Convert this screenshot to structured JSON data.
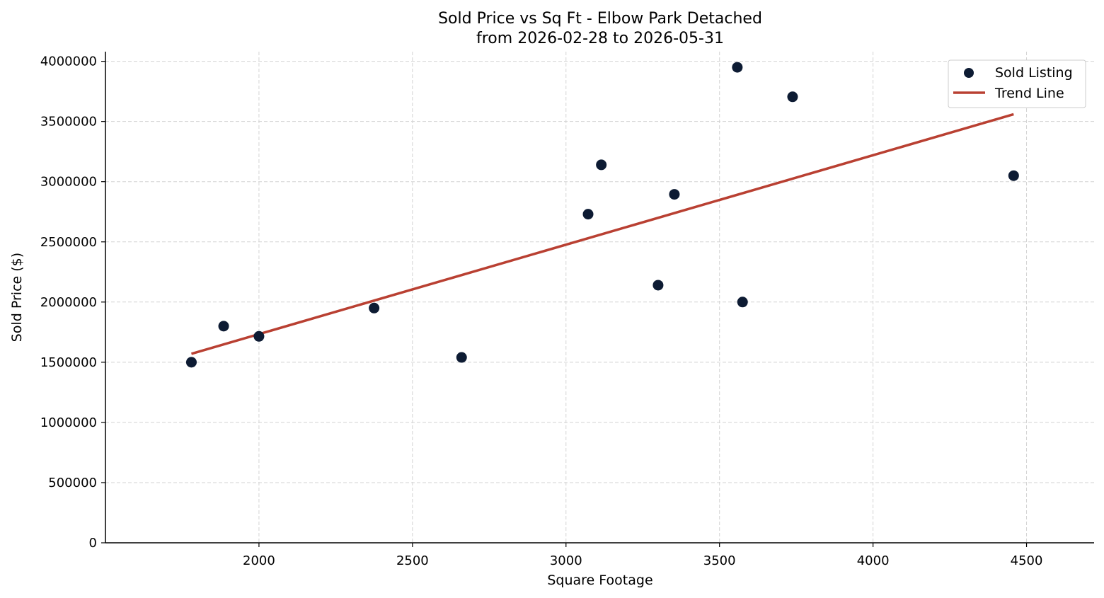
{
  "chart_data": {
    "type": "scatter",
    "title_line1": "Sold Price vs Sq Ft - Elbow Park Detached",
    "title_line2": "from 2026-02-28 to 2026-05-31",
    "xlabel": "Square Footage",
    "ylabel": "Sold Price ($)",
    "xlim": [
      1500,
      4720
    ],
    "ylim": [
      0,
      4080000
    ],
    "xticks": [
      2000,
      2500,
      3000,
      3500,
      4000,
      4500
    ],
    "yticks": [
      0,
      500000,
      1000000,
      1500000,
      2000000,
      2500000,
      3000000,
      3500000,
      4000000
    ],
    "grid": true,
    "legend_position": "top-right",
    "colors": {
      "points": "#0d1b33",
      "trend": "#b94032"
    },
    "series": [
      {
        "name": "Sold Listing",
        "kind": "scatter",
        "points": [
          {
            "x": 1780,
            "y": 1500000
          },
          {
            "x": 1885,
            "y": 1800000
          },
          {
            "x": 2000,
            "y": 1715000
          },
          {
            "x": 2375,
            "y": 1950000
          },
          {
            "x": 2660,
            "y": 1540000
          },
          {
            "x": 3072,
            "y": 2730000
          },
          {
            "x": 3115,
            "y": 3140000
          },
          {
            "x": 3300,
            "y": 2140000
          },
          {
            "x": 3353,
            "y": 2895000
          },
          {
            "x": 3558,
            "y": 3950000
          },
          {
            "x": 3575,
            "y": 2000000
          },
          {
            "x": 3738,
            "y": 3705000
          },
          {
            "x": 4458,
            "y": 3050000
          }
        ]
      },
      {
        "name": "Trend Line",
        "kind": "line",
        "points": [
          {
            "x": 1780,
            "y": 1570000
          },
          {
            "x": 4458,
            "y": 3560000
          }
        ]
      }
    ]
  }
}
